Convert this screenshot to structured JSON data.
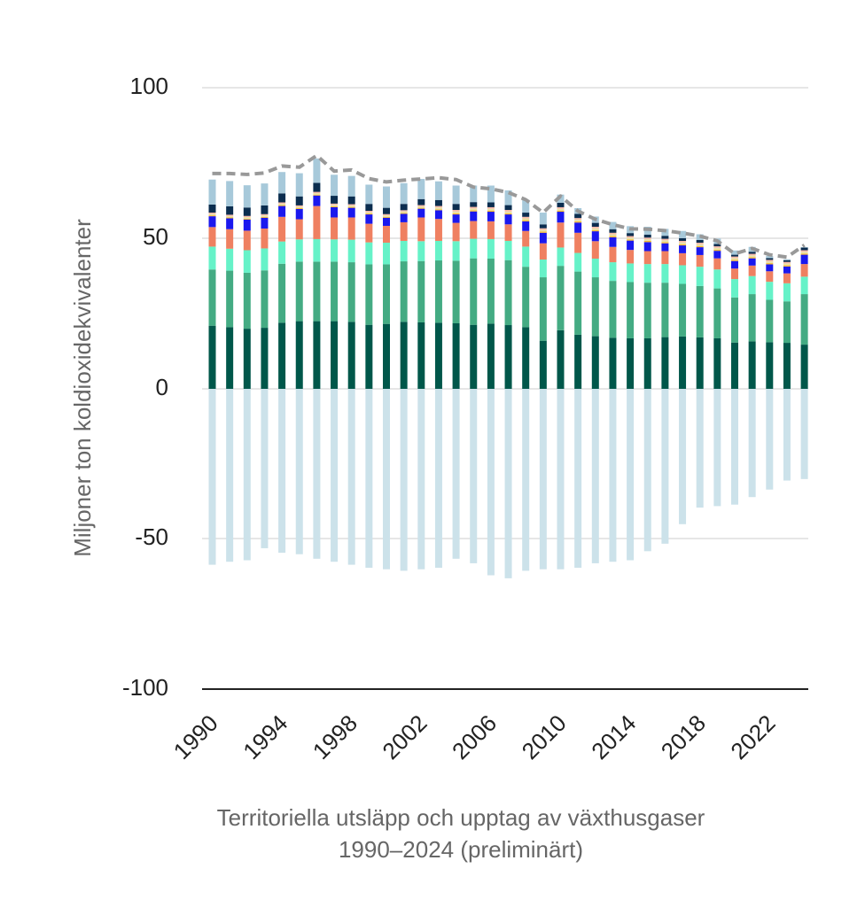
{
  "chart_data": {
    "type": "bar",
    "stacked": true,
    "ylabel": "Miljoner ton koldioxidekvivalenter",
    "ylim": [
      -100,
      100
    ],
    "yticks": [
      100,
      50,
      0,
      -50,
      -100
    ],
    "xtick_labels": [
      "1990",
      "1994",
      "1998",
      "2002",
      "2006",
      "2010",
      "2014",
      "2018",
      "2022"
    ],
    "grid": true,
    "legend": "none",
    "caption_line1": "Territoriella utsläpp och upptag av växthusgaser",
    "caption_line2": "1990–2024 (preliminärt)",
    "years": [
      1990,
      1991,
      1992,
      1993,
      1994,
      1995,
      1996,
      1997,
      1998,
      1999,
      2000,
      2001,
      2002,
      2003,
      2004,
      2005,
      2006,
      2007,
      2008,
      2009,
      2010,
      2011,
      2012,
      2013,
      2014,
      2015,
      2016,
      2017,
      2018,
      2019,
      2020,
      2021,
      2022,
      2023,
      2024
    ],
    "series": [
      {
        "color": "#00574a",
        "values": [
          21,
          20.5,
          20,
          20.3,
          22,
          22.5,
          22.5,
          22.5,
          22.3,
          21.3,
          21.6,
          22.3,
          22.1,
          22,
          21.8,
          21.3,
          21.7,
          21.2,
          20.5,
          16,
          19.5,
          18,
          17.5,
          17,
          16.8,
          16.8,
          17.2,
          17.4,
          17.1,
          16.8,
          15.4,
          15.8,
          15.5,
          15.3,
          14.7
        ]
      },
      {
        "color": "#44ab83",
        "values": [
          18.7,
          18.8,
          18.6,
          19.1,
          19.6,
          19.8,
          19.8,
          19.8,
          19.8,
          20.1,
          19.8,
          20.1,
          20.4,
          20.7,
          20.8,
          22.1,
          21.6,
          21.6,
          20.1,
          21.1,
          21.4,
          21,
          19.6,
          18.9,
          18.7,
          18.5,
          18.1,
          17.5,
          17.1,
          16.6,
          15,
          15.7,
          14.1,
          13.8,
          16.8
        ]
      },
      {
        "color": "#66f2c8",
        "values": [
          7.6,
          7.3,
          7.5,
          7.3,
          7.4,
          7.4,
          7.5,
          7.4,
          7.5,
          7.3,
          7.2,
          6.8,
          6.6,
          6.5,
          6.5,
          6.5,
          6.5,
          6.4,
          6.7,
          5.9,
          6.1,
          6.2,
          6.2,
          6.2,
          6.2,
          6.2,
          6.2,
          6.2,
          6.4,
          6.3,
          6.1,
          6,
          6,
          6,
          5.8
        ]
      },
      {
        "color": "#ef8061",
        "values": [
          6.5,
          6.5,
          6.5,
          6.6,
          8.2,
          6.7,
          11,
          7.3,
          7.4,
          6.2,
          5.6,
          6.2,
          7.9,
          7.3,
          6.1,
          5.9,
          5.9,
          5.5,
          5.2,
          5.4,
          8.3,
          6.7,
          5.8,
          5.1,
          4.5,
          4.3,
          4.3,
          4,
          3.9,
          3.7,
          3.5,
          3.5,
          3.5,
          3.3,
          4.2
        ]
      },
      {
        "color": "#1a18ee",
        "values": [
          3.6,
          3.6,
          3.7,
          3.6,
          3.6,
          3.4,
          3.5,
          3.4,
          3.2,
          3.1,
          2.7,
          2.8,
          2.9,
          2.9,
          2.8,
          3.2,
          3.2,
          3.3,
          3.2,
          3.5,
          3.6,
          3.4,
          3.3,
          3.2,
          3.1,
          3,
          2.6,
          2.6,
          2.6,
          2.5,
          2.5,
          2.4,
          2.3,
          2.3,
          3.1
        ]
      },
      {
        "color": "#f5b82e",
        "values": [
          0.3,
          0.3,
          0.3,
          0.3,
          0.3,
          0.3,
          0.3,
          0.3,
          0.3,
          0.3,
          0.3,
          0.3,
          0.3,
          0.3,
          0.4,
          0.4,
          0.4,
          0.4,
          0.4,
          0.4,
          0.4,
          0.4,
          0.4,
          0.4,
          0.4,
          0.4,
          0.4,
          0.4,
          0.4,
          0.4,
          0.4,
          0.4,
          0.4,
          0.4,
          0.4
        ]
      },
      {
        "color": "#e8e2a8",
        "values": [
          0.5,
          0.5,
          0.5,
          0.5,
          0.5,
          0.5,
          0.5,
          0.5,
          0.5,
          0.5,
          0.5,
          0.5,
          0.5,
          0.6,
          0.6,
          0.6,
          0.6,
          0.6,
          0.6,
          0.6,
          0.6,
          0.6,
          0.6,
          0.6,
          0.6,
          0.6,
          0.6,
          0.6,
          0.6,
          0.6,
          0.6,
          0.6,
          0.6,
          0.6,
          0.6
        ]
      },
      {
        "color": "#f7b8a8",
        "values": [
          0.4,
          0.4,
          0.4,
          0.4,
          0.4,
          0.4,
          0.4,
          0.4,
          0.4,
          0.4,
          0.4,
          0.4,
          0.4,
          0.5,
          0.5,
          0.5,
          0.5,
          0.5,
          0.5,
          0.5,
          0.5,
          0.5,
          0.5,
          0.5,
          0.5,
          0.5,
          0.5,
          0.5,
          0.5,
          0.5,
          0.5,
          0.5,
          0.5,
          0.5,
          0.5
        ]
      },
      {
        "color": "#0b2d4f",
        "values": [
          2.7,
          2.8,
          2.8,
          2.9,
          3,
          3,
          3,
          2.6,
          2.6,
          2.3,
          2.1,
          2.1,
          2,
          2,
          2,
          1.6,
          1.6,
          1.6,
          1.4,
          1.3,
          1.5,
          1.4,
          1.3,
          1.2,
          1,
          1,
          1,
          0.9,
          0.9,
          0.8,
          0.6,
          0.7,
          0.6,
          0.6,
          0.9
        ]
      },
      {
        "color": "#a7c9da",
        "values": [
          8.3,
          8.4,
          7.4,
          7.3,
          7.1,
          7.7,
          8.1,
          7,
          6.8,
          6.4,
          7.1,
          6.9,
          6.7,
          6.2,
          6.1,
          5.5,
          5.6,
          4.9,
          4.3,
          3.9,
          2.7,
          1.9,
          2.1,
          2.4,
          2.3,
          2.6,
          2.3,
          2.4,
          1.9,
          1.8,
          1.4,
          1.6,
          0.7,
          0.3,
          0.1
        ]
      },
      {
        "color": "#cce2ea",
        "values": [
          -58.5,
          -57.5,
          -57,
          -53,
          -54.5,
          -55,
          -56.5,
          -57.5,
          -58.5,
          -59.5,
          -60,
          -60.5,
          -60,
          -59.5,
          -56.5,
          -58,
          -62,
          -63,
          -60.5,
          -60,
          -60,
          -59.5,
          -58,
          -57.5,
          -57,
          -54,
          -51.5,
          -45,
          -39.5,
          -39,
          -38.5,
          -36,
          -33.5,
          -30.5,
          -30
        ]
      }
    ],
    "total_net_line": {
      "style": "dashed",
      "color": "#999999",
      "values": [
        71.6,
        71.6,
        71.3,
        71.8,
        74.1,
        73.7,
        77.6,
        72.4,
        72.8,
        69.9,
        68.8,
        69.4,
        69.8,
        70.2,
        69.6,
        67.1,
        66.5,
        65.3,
        62.9,
        58.6,
        64.1,
        59.1,
        56.4,
        54.6,
        53.2,
        53.1,
        52.6,
        51.8,
        50.8,
        49.2,
        44.9,
        46.7,
        44.6,
        43.8,
        47.8
      ]
    }
  }
}
